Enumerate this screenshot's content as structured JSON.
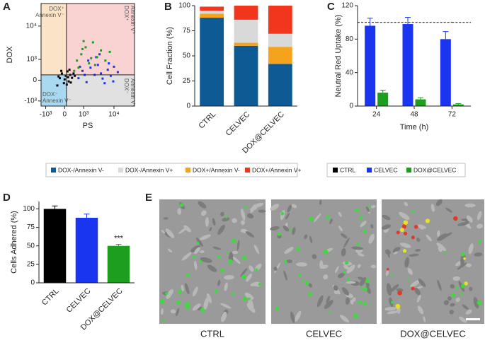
{
  "panel_labels": [
    "A",
    "B",
    "C",
    "D",
    "E"
  ],
  "chart_data": [
    {
      "type": "scatter",
      "ylabel": "DOX",
      "xlabel": "PS",
      "scale": "symlog",
      "linthresh": 400,
      "xlim": [
        -1500,
        40000
      ],
      "ylim": [
        -1500,
        40000
      ],
      "xticks": [
        {
          "value": -1000,
          "label": "-10³"
        },
        0,
        {
          "value": 1000,
          "label": "10³"
        },
        {
          "value": 10000,
          "label": "10⁴"
        }
      ],
      "yticks": [
        {
          "value": -1000,
          "label": "-10³"
        },
        0,
        {
          "value": 1000,
          "label": "10³"
        },
        {
          "value": 10000,
          "label": "10⁴"
        }
      ],
      "quadrant_gate": {
        "x": 50,
        "y": 150
      },
      "quadrant_colors": {
        "top_left": "#fbe3c8",
        "top_right": "#f9d2d2",
        "bottom_left": "#a9d9f0",
        "bottom_right": "#e1e1e1"
      },
      "quadrant_labels": {
        "top_left": [
          "DOX⁺",
          "Annexin V⁻"
        ],
        "top_right": [
          "DOX⁺",
          "Annexin V⁺"
        ],
        "bottom_left": [
          "DOX⁻",
          "Annexin V⁻"
        ],
        "bottom_right": [
          "DOX⁻",
          "Annexin V⁺"
        ]
      },
      "series": [
        {
          "name": "CTRL",
          "color": "#000000",
          "x": [
            -250,
            -150,
            -80,
            -20,
            30,
            80,
            120,
            180,
            250,
            320,
            -200,
            60,
            150,
            0,
            200,
            380,
            -100,
            100
          ],
          "values": [
            -150,
            50,
            200,
            -80,
            120,
            280,
            -30,
            150,
            60,
            200,
            100,
            -120,
            350,
            20,
            -60,
            120,
            300,
            80
          ]
        },
        {
          "name": "CELVEC",
          "color": "#1a35f0",
          "x": [
            600,
            900,
            1300,
            1800,
            2500,
            3200,
            4000,
            5200,
            6500,
            8000,
            10000,
            13000,
            1500,
            2800,
            4500,
            7000,
            9500,
            700,
            1100,
            3600
          ],
          "values": [
            50,
            300,
            -50,
            450,
            150,
            600,
            200,
            -80,
            350,
            120,
            500,
            250,
            900,
            1200,
            40,
            700,
            -30,
            500,
            150,
            1500
          ]
        },
        {
          "name": "DOX@CELVEC",
          "color": "#1e9e1e",
          "x": [
            350,
            500,
            800,
            1200,
            1600,
            2200,
            3000,
            4000,
            5500,
            7500,
            600,
            1000,
            2600,
            900,
            1900
          ],
          "values": [
            300,
            900,
            1500,
            2500,
            700,
            3500,
            1200,
            2000,
            900,
            1800,
            450,
            3800,
            600,
            2200,
            1100
          ]
        }
      ]
    },
    {
      "type": "stacked_bar",
      "ylabel": "Cell Fraction (%)",
      "categories": [
        "CTRL",
        "CELVEC",
        "DOX@CELVEC"
      ],
      "ylim": [
        0,
        100
      ],
      "yticks": [
        0,
        25,
        50,
        75,
        100
      ],
      "stack_order": [
        0,
        2,
        1,
        3
      ],
      "series": [
        {
          "name": "DOX-/Annexin V-",
          "color": "#0d5a94",
          "values": [
            88,
            60,
            42
          ]
        },
        {
          "name": "DOX-/Annexin V+",
          "color": "#d9d9d9",
          "values": [
            3,
            23,
            13
          ]
        },
        {
          "name": "DOX+/Annexin V-",
          "color": "#f5a31c",
          "values": [
            4,
            3,
            17
          ]
        },
        {
          "name": "DOX+/Annexin V+",
          "color": "#f2361d",
          "values": [
            4,
            14,
            28
          ]
        }
      ]
    },
    {
      "type": "grouped_bar",
      "ylabel": "Neutral Red Uptake (%)",
      "xlabel": "Time (h)",
      "categories": [
        "24",
        "48",
        "72"
      ],
      "ylim": [
        0,
        120
      ],
      "yticks": [
        0,
        40,
        80,
        120
      ],
      "series": [
        {
          "name": "CTRL",
          "color": "#000000",
          "style": "dashed-line",
          "values": [
            100,
            100,
            100
          ]
        },
        {
          "name": "CELVEC",
          "color": "#1a35f0",
          "values": [
            96,
            98,
            80
          ],
          "errors": [
            9,
            8,
            9
          ]
        },
        {
          "name": "DOX@CELVEC",
          "color": "#1e9e1e",
          "values": [
            16,
            8,
            2
          ],
          "errors": [
            3,
            2,
            1
          ]
        }
      ]
    },
    {
      "type": "bar",
      "ylabel": "Cells Adhered (%)",
      "categories": [
        "CTRL",
        "CELVEC",
        "DOX@CELVEC"
      ],
      "ylim": [
        0,
        110
      ],
      "yticks": [
        0,
        25,
        50,
        75,
        100
      ],
      "values": [
        100,
        88,
        50
      ],
      "errors": [
        4,
        5,
        2
      ],
      "colors": [
        "#000000",
        "#1a35f0",
        "#1e9e1e"
      ],
      "annotation": "***"
    }
  ],
  "micrographs": {
    "captions": [
      "CTRL",
      "CELVEC",
      "DOX@CELVEC"
    ]
  }
}
